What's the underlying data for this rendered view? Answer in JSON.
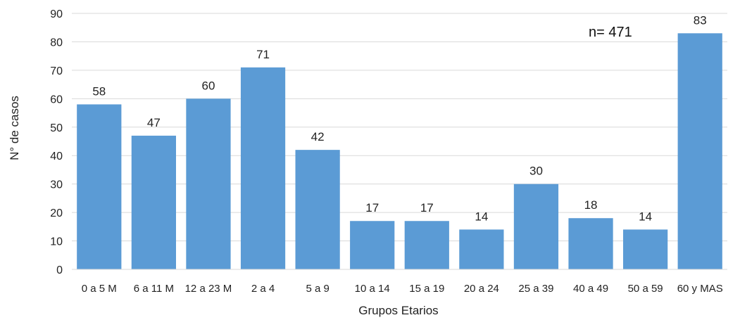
{
  "chart_data": {
    "type": "bar",
    "title": "",
    "xlabel": "Grupos Etarios",
    "ylabel": "N° de casos",
    "categories": [
      "0 a 5 M",
      "6 a 11 M",
      "12 a 23 M",
      "2 a 4",
      "5 a 9",
      "10 a 14",
      "15 a 19",
      "20 a 24",
      "25 a 39",
      "40 a 49",
      "50 a 59",
      "60 y MAS"
    ],
    "values": [
      58,
      47,
      60,
      71,
      42,
      17,
      17,
      14,
      30,
      18,
      14,
      83
    ],
    "ylim": [
      0,
      90
    ],
    "yticks": [
      0,
      10,
      20,
      30,
      40,
      50,
      60,
      70,
      80,
      90
    ],
    "grid": true,
    "legend": "none",
    "annotation": "n= 471",
    "bar_color": "#5b9bd5",
    "grid_color": "#d9d9d9"
  }
}
